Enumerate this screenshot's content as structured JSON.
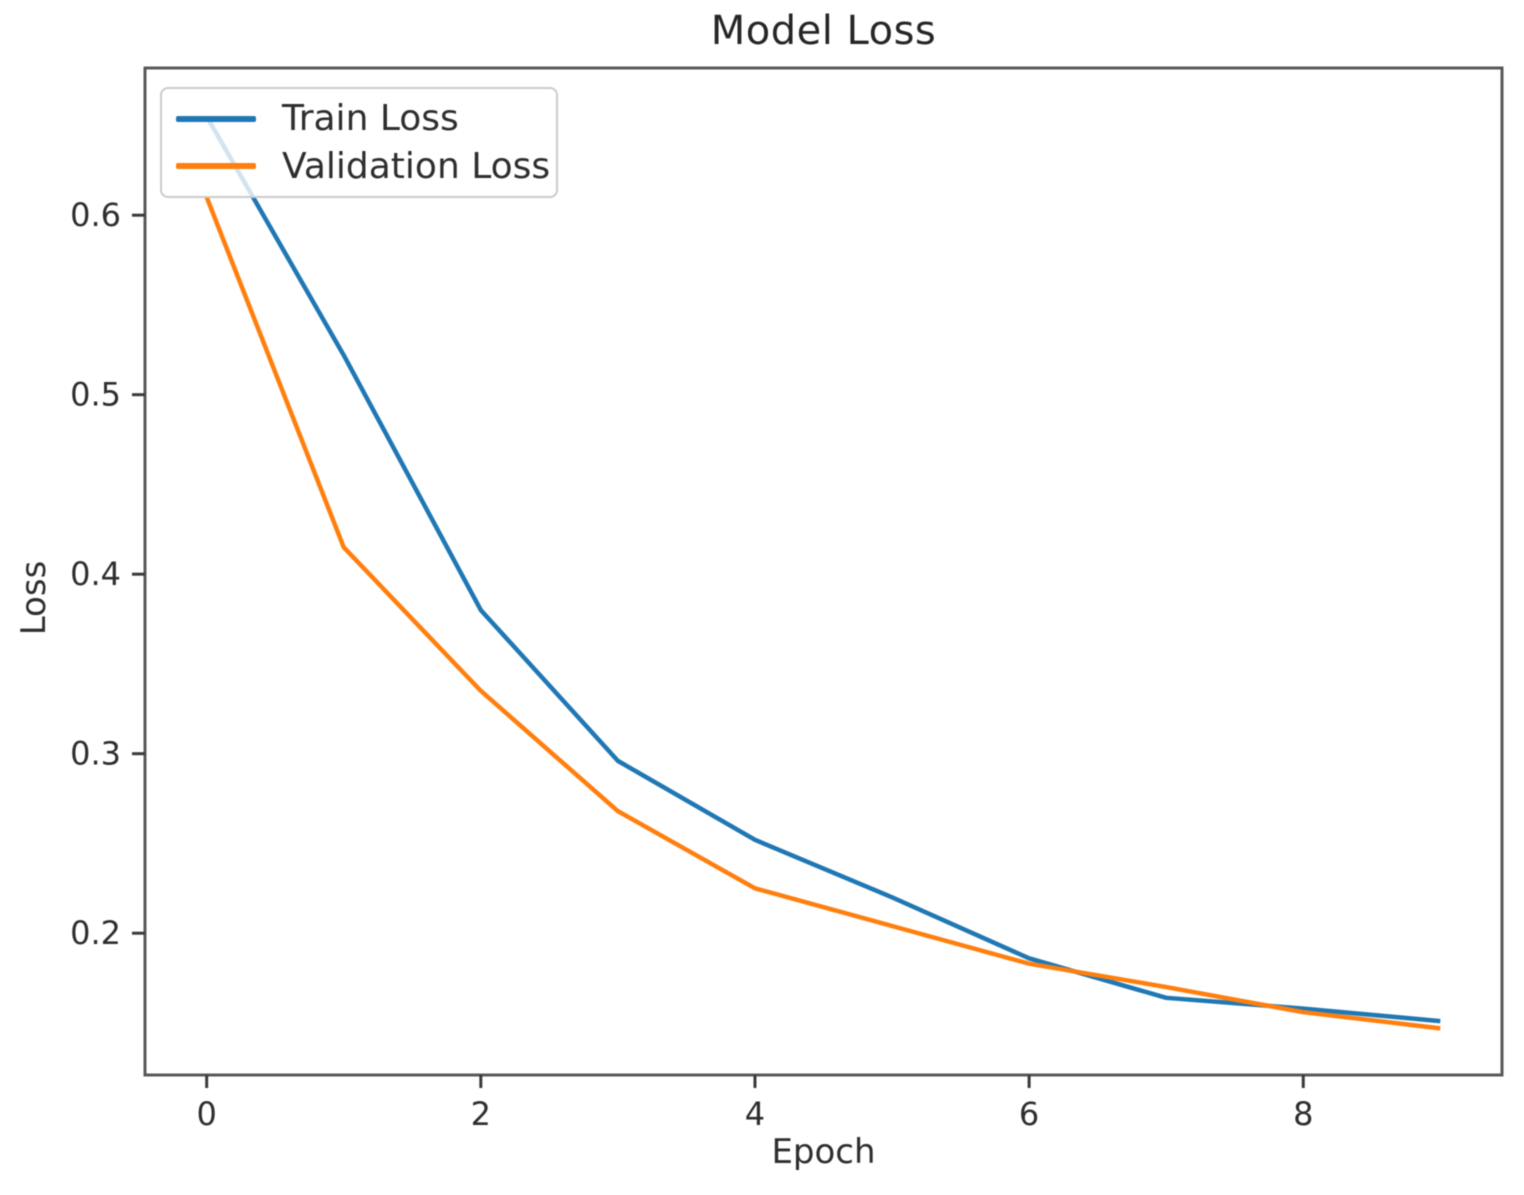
{
  "figure": {
    "background": "#ffffff",
    "spine_color": "#595959",
    "tick_color": "#3a3a3a",
    "text_color": "#2e2e2e"
  },
  "chart_data": {
    "type": "line",
    "title": "Model Loss",
    "xlabel": "Epoch",
    "ylabel": "Loss",
    "x": [
      0,
      1,
      2,
      3,
      4,
      5,
      6,
      7,
      8,
      9
    ],
    "series": [
      {
        "name": "Train Loss",
        "color": "#1f77b4",
        "values": [
          0.655,
          0.522,
          0.38,
          0.296,
          0.252,
          0.22,
          0.186,
          0.164,
          0.158,
          0.151
        ]
      },
      {
        "name": "Validation Loss",
        "color": "#ff7f0e",
        "values": [
          0.61,
          0.415,
          0.335,
          0.268,
          0.225,
          0.204,
          0.183,
          0.17,
          0.156,
          0.147
        ]
      }
    ],
    "xlim": [
      -0.45,
      9.45
    ],
    "ylim": [
      0.121,
      0.682
    ],
    "xticks": [
      0,
      2,
      4,
      6,
      8
    ],
    "xtick_labels": [
      "0",
      "2",
      "4",
      "6",
      "8"
    ],
    "yticks": [
      0.2,
      0.3,
      0.4,
      0.5,
      0.6
    ],
    "ytick_labels": [
      "0.2",
      "0.3",
      "0.4",
      "0.5",
      "0.6"
    ],
    "grid": false,
    "legend_position": "upper left",
    "line_width": 4.5
  }
}
